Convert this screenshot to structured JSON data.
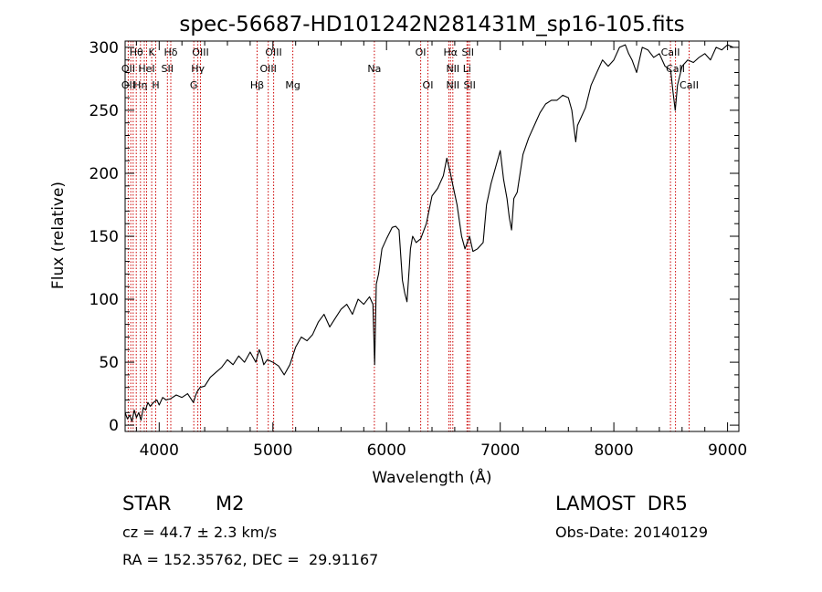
{
  "chart_data": {
    "type": "line",
    "title": "spec-56687-HD101242N281431M_sp16-105.fits",
    "xlabel": "Wavelength (Å)",
    "ylabel": "Flux (relative)",
    "xlim": [
      3700,
      9100
    ],
    "ylim": [
      -5,
      305
    ],
    "xticks": [
      4000,
      5000,
      6000,
      7000,
      8000,
      9000
    ],
    "yticks": [
      0,
      50,
      100,
      150,
      200,
      250,
      300
    ],
    "grid": false,
    "line_color": "#000000",
    "marker_color": "#cc0000",
    "series": [
      {
        "x": [
          3700,
          3720,
          3740,
          3760,
          3780,
          3800,
          3820,
          3840,
          3860,
          3880,
          3900,
          3920,
          3950,
          3980,
          4000,
          4030,
          4060,
          4100,
          4150,
          4200,
          4250,
          4300,
          4330,
          4360,
          4400,
          4450,
          4500,
          4550,
          4600,
          4650,
          4700,
          4750,
          4800,
          4850,
          4880,
          4900,
          4920,
          4950,
          5000,
          5050,
          5100,
          5150,
          5200,
          5250,
          5300,
          5350,
          5400,
          5450,
          5500,
          5550,
          5600,
          5650,
          5700,
          5750,
          5800,
          5850,
          5880,
          5895,
          5910,
          5930,
          5960,
          6000,
          6050,
          6080,
          6110,
          6140,
          6160,
          6180,
          6200,
          6210,
          6230,
          6260,
          6300,
          6350,
          6400,
          6450,
          6500,
          6530,
          6562,
          6580,
          6620,
          6660,
          6690,
          6710,
          6730,
          6760,
          6800,
          6850,
          6880,
          6920,
          6960,
          7000,
          7030,
          7060,
          7080,
          7100,
          7120,
          7150,
          7200,
          7250,
          7300,
          7350,
          7400,
          7450,
          7500,
          7550,
          7600,
          7630,
          7650,
          7665,
          7680,
          7700,
          7750,
          7800,
          7850,
          7900,
          7950,
          8000,
          8050,
          8100,
          8130,
          8160,
          8200,
          8250,
          8300,
          8350,
          8400,
          8450,
          8500,
          8520,
          8540,
          8560,
          8600,
          8650,
          8700,
          8750,
          8800,
          8850,
          8900,
          8950,
          9000,
          9050
        ],
        "values": [
          10,
          5,
          8,
          3,
          12,
          6,
          10,
          4,
          14,
          12,
          18,
          15,
          18,
          20,
          16,
          22,
          20,
          21,
          24,
          22,
          25,
          18,
          26,
          30,
          31,
          38,
          42,
          46,
          52,
          48,
          55,
          50,
          58,
          50,
          60,
          55,
          48,
          52,
          50,
          47,
          40,
          48,
          62,
          70,
          67,
          72,
          82,
          88,
          78,
          85,
          92,
          96,
          88,
          100,
          96,
          102,
          96,
          48,
          112,
          120,
          140,
          148,
          157,
          158,
          155,
          115,
          105,
          98,
          125,
          140,
          150,
          145,
          148,
          160,
          182,
          188,
          198,
          212,
          200,
          192,
          175,
          150,
          140,
          145,
          150,
          138,
          140,
          145,
          175,
          192,
          205,
          218,
          195,
          180,
          165,
          155,
          180,
          185,
          215,
          228,
          238,
          248,
          255,
          258,
          258,
          262,
          260,
          250,
          235,
          225,
          238,
          242,
          252,
          270,
          280,
          290,
          285,
          290,
          300,
          302,
          295,
          290,
          280,
          300,
          298,
          292,
          295,
          285,
          282,
          265,
          250,
          270,
          285,
          290,
          288,
          292,
          295,
          290,
          300,
          298,
          302,
          300
        ]
      }
    ],
    "line_markers": [
      {
        "x": 3727,
        "label": "OII"
      },
      {
        "x": 3750,
        "label": ""
      },
      {
        "x": 3771,
        "label": ""
      },
      {
        "x": 3798,
        "label": "Hθ"
      },
      {
        "x": 3835,
        "label": "Hη"
      },
      {
        "x": 3869,
        "label": ""
      },
      {
        "x": 3889,
        "label": "HeI"
      },
      {
        "x": 3934,
        "label": "K"
      },
      {
        "x": 3969,
        "label": "H"
      },
      {
        "x": 4072,
        "label": "SII"
      },
      {
        "x": 4102,
        "label": "Hδ"
      },
      {
        "x": 4304,
        "label": "G"
      },
      {
        "x": 4340,
        "label": "Hγ"
      },
      {
        "x": 4363,
        "label": "OIII"
      },
      {
        "x": 4861,
        "label": "Hβ"
      },
      {
        "x": 4959,
        "label": "OIII"
      },
      {
        "x": 5007,
        "label": "OIII"
      },
      {
        "x": 5175,
        "label": "Mg"
      },
      {
        "x": 5893,
        "label": "Na"
      },
      {
        "x": 6300,
        "label": "OI"
      },
      {
        "x": 6364,
        "label": "OI"
      },
      {
        "x": 6548,
        "label": "NII"
      },
      {
        "x": 6563,
        "label": "Hα"
      },
      {
        "x": 6583,
        "label": "NII"
      },
      {
        "x": 6708,
        "label": "Li"
      },
      {
        "x": 6716,
        "label": "SII"
      },
      {
        "x": 6731,
        "label": "SII"
      },
      {
        "x": 8498,
        "label": "CaII"
      },
      {
        "x": 8542,
        "label": "CaII"
      },
      {
        "x": 8662,
        "label": "CaII"
      }
    ],
    "marker_label_rows": [
      [
        {
          "x": 3798,
          "text": "Hθ"
        },
        {
          "x": 3934,
          "text": "K"
        },
        {
          "x": 4102,
          "text": "Hδ"
        },
        {
          "x": 4363,
          "text": "OIII"
        },
        {
          "x": 5007,
          "text": "OIII"
        },
        {
          "x": 6300,
          "text": "OI"
        },
        {
          "x": 6563,
          "text": "Hα"
        },
        {
          "x": 6716,
          "text": "SII"
        },
        {
          "x": 8498,
          "text": "CaII"
        }
      ],
      [
        {
          "x": 3727,
          "text": "OII"
        },
        {
          "x": 3889,
          "text": "HeI"
        },
        {
          "x": 4072,
          "text": "SII"
        },
        {
          "x": 4340,
          "text": "Hγ"
        },
        {
          "x": 4959,
          "text": "OIII"
        },
        {
          "x": 5893,
          "text": "Na"
        },
        {
          "x": 6583,
          "text": "NII"
        },
        {
          "x": 6708,
          "text": "Li"
        },
        {
          "x": 8542,
          "text": "CaII"
        }
      ],
      [
        {
          "x": 3727,
          "text": "OII"
        },
        {
          "x": 3835,
          "text": "Hη"
        },
        {
          "x": 3969,
          "text": "H"
        },
        {
          "x": 4304,
          "text": "G"
        },
        {
          "x": 4861,
          "text": "Hβ"
        },
        {
          "x": 5175,
          "text": "Mg"
        },
        {
          "x": 6364,
          "text": "OI"
        },
        {
          "x": 6583,
          "text": "NII"
        },
        {
          "x": 6731,
          "text": "SII"
        },
        {
          "x": 8662,
          "text": "CaII"
        }
      ]
    ]
  },
  "info": {
    "class": "STAR",
    "subclass": "M2",
    "survey": "LAMOST  DR5",
    "cz": "cz = 44.7 ± 2.3 km/s",
    "obs_date": "Obs-Date: 20140129",
    "radec": "RA = 152.35762, DEC =  29.91167"
  }
}
